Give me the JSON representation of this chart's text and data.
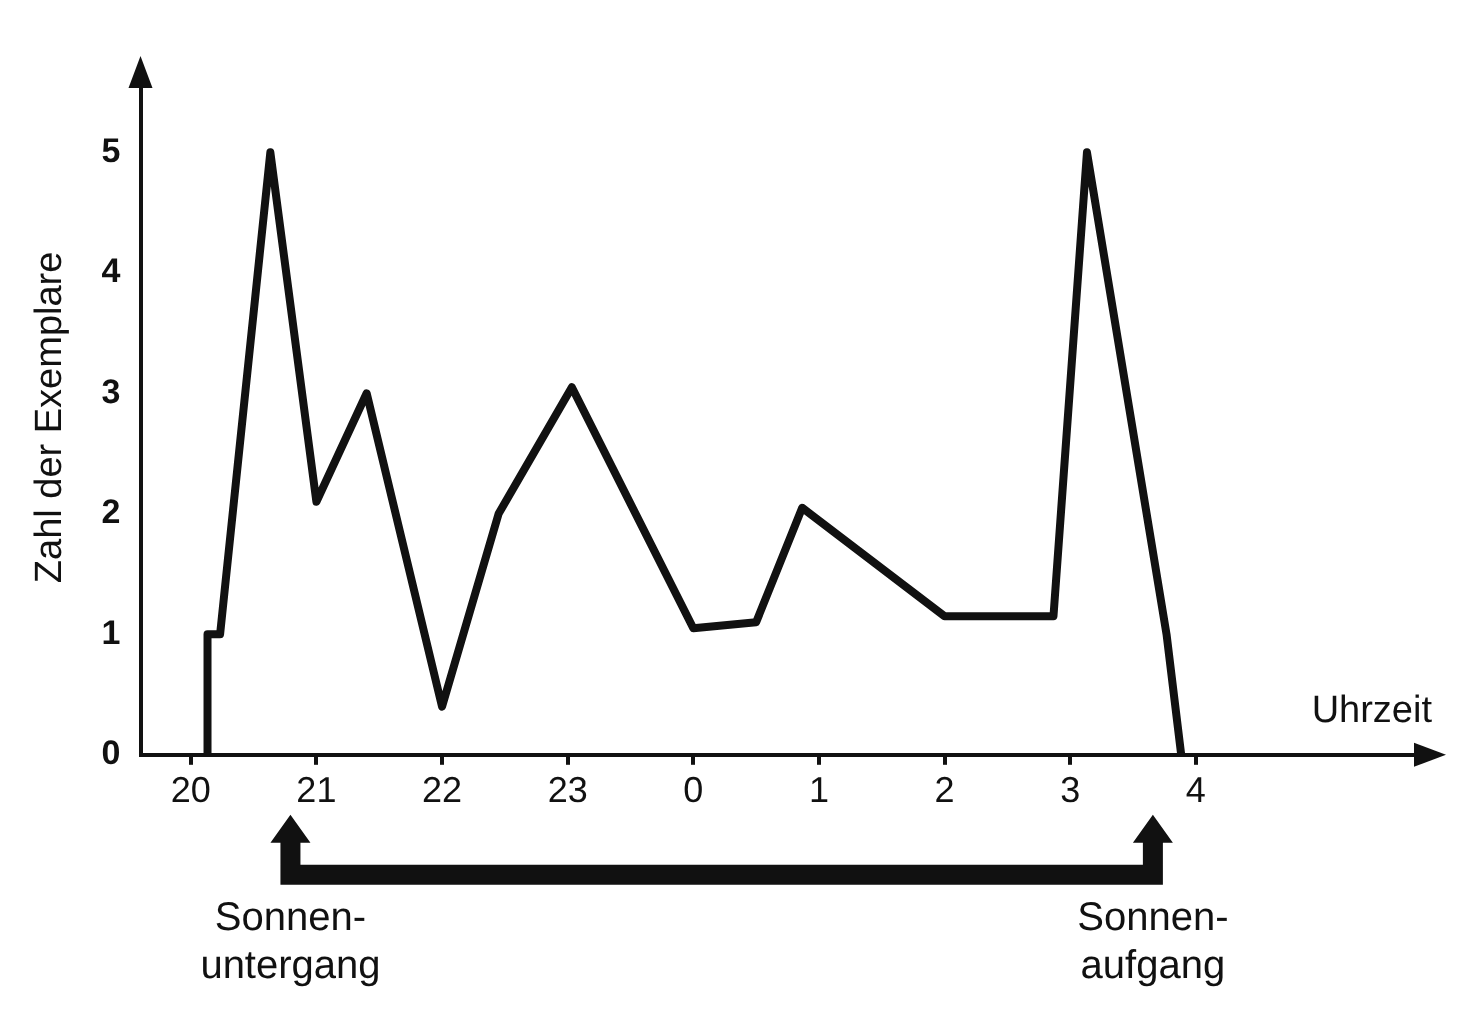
{
  "chart_data": {
    "type": "line",
    "xlabel": "Uhrzeit",
    "ylabel": "Zahl der Exemplare",
    "x": [
      "--01-01T20:08",
      "--01-01T20:08",
      "--01-01T20:14",
      "--01-01T20:38",
      "--01-01T21:00",
      "--01-01T21:24",
      "--01-01T22:00",
      "--01-01T22:27",
      "--01-01T23:02",
      "--01-02T00:00",
      "--01-02T00:30",
      "--01-02T00:52",
      "--01-02T02:00",
      "--01-02T02:52",
      "--01-02T03:08",
      "--01-02T03:46",
      "--01-02T03:53"
    ],
    "series": [
      {
        "color": "#111111",
        "values": [
          0,
          1,
          1,
          5,
          2.1,
          3,
          0.4,
          2,
          3.05,
          1.05,
          1.1,
          2.05,
          1.15,
          1.15,
          5,
          1,
          0
        ]
      }
    ],
    "xlim": [
      "--01-01T19:36",
      "--01-02T05:48"
    ],
    "xticks": [
      {
        "value": "--01-01T20:00",
        "label": "20"
      },
      {
        "value": "--01-01T21:00",
        "label": "21"
      },
      {
        "value": "--01-01T22:00",
        "label": "22"
      },
      {
        "value": "--01-01T23:00",
        "label": "23"
      },
      {
        "value": "--01-02T00:00",
        "label": "0"
      },
      {
        "value": "--01-02T01:00",
        "label": "1"
      },
      {
        "value": "--01-02T02:00",
        "label": "2"
      },
      {
        "value": "--01-02T03:00",
        "label": "3"
      },
      {
        "value": "--01-02T04:00",
        "label": "4"
      }
    ],
    "ylim": [
      0,
      5.6
    ],
    "yticks": [
      0,
      1,
      2,
      3,
      4,
      5
    ],
    "marker": "none",
    "line_style": "solid",
    "legend": false,
    "annotations": [
      "Sonnen-\nuntergang",
      "Sonnen-\naufgang"
    ]
  }
}
